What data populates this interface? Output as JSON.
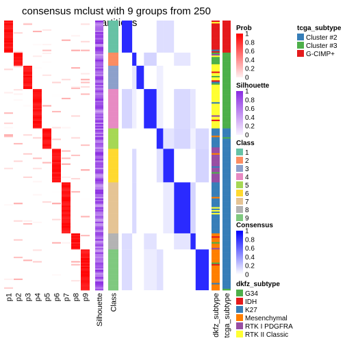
{
  "chart_data": {
    "type": "heatmap",
    "title": "consensus mclust with 9 groups from 250 partitions",
    "probability_columns": [
      "p1",
      "p2",
      "p3",
      "p4",
      "p5",
      "p6",
      "p7",
      "p8",
      "p9"
    ],
    "annotation_columns": [
      "Silhouette",
      "Class"
    ],
    "bottom_annotation_columns": [
      "dkfz_subtype",
      "tcga_subtype"
    ],
    "groups": [
      {
        "class": 1,
        "size": 22
      },
      {
        "class": 2,
        "size": 9
      },
      {
        "class": 3,
        "size": 16
      },
      {
        "class": 4,
        "size": 27
      },
      {
        "class": 5,
        "size": 14
      },
      {
        "class": 6,
        "size": 23
      },
      {
        "class": 7,
        "size": 35
      },
      {
        "class": 8,
        "size": 11
      },
      {
        "class": 9,
        "size": 28
      }
    ],
    "legends": {
      "prob": {
        "title": "Prob",
        "ticks": [
          "1",
          "0.8",
          "0.6",
          "0.4",
          "0.2",
          "0"
        ],
        "colors": [
          "#ff0000",
          "#fff0f0"
        ]
      },
      "silhouette": {
        "title": "Silhouette",
        "ticks": [
          "1",
          "0.8",
          "0.6",
          "0.4",
          "0.2",
          "0"
        ],
        "colors": [
          "#8a2be2",
          "#f8f2ff"
        ]
      },
      "class": {
        "title": "Class",
        "items": [
          {
            "label": "1",
            "color": "#66C2A5"
          },
          {
            "label": "2",
            "color": "#FC8D62"
          },
          {
            "label": "3",
            "color": "#8DA0CB"
          },
          {
            "label": "4",
            "color": "#E78AC3"
          },
          {
            "label": "5",
            "color": "#A6D854"
          },
          {
            "label": "6",
            "color": "#FFD92F"
          },
          {
            "label": "7",
            "color": "#E5C494"
          },
          {
            "label": "8",
            "color": "#B3B3B3"
          },
          {
            "label": "9",
            "color": "#7FC97F"
          }
        ]
      },
      "consensus": {
        "title": "Consensus",
        "ticks": [
          "1",
          "0.8",
          "0.6",
          "0.4",
          "0.2",
          "0"
        ],
        "colors": [
          "#0000ff",
          "#ffffff"
        ]
      },
      "tcga_subtype": {
        "title": "tcga_subtype",
        "items": [
          {
            "label": "Cluster #2",
            "color": "#377EB8"
          },
          {
            "label": "Cluster #3",
            "color": "#4DAF4A"
          },
          {
            "label": "G-CIMP+",
            "color": "#E41A1C"
          }
        ]
      },
      "dkfz_subtype": {
        "title": "dkfz_subtype",
        "items": [
          {
            "label": "G34",
            "color": "#4DAF4A"
          },
          {
            "label": "IDH",
            "color": "#E41A1C"
          },
          {
            "label": "K27",
            "color": "#377EB8"
          },
          {
            "label": "Mesenchymal",
            "color": "#FF7F00"
          },
          {
            "label": "RTK I PDGFRA",
            "color": "#984EA3"
          },
          {
            "label": "RTK II Classic",
            "color": "#FFFF33"
          }
        ]
      }
    }
  }
}
